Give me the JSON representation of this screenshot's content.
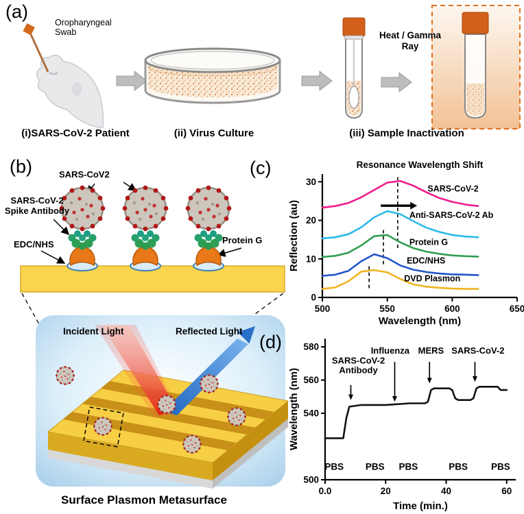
{
  "panel_a": {
    "label": "(a)",
    "swab_label": "Oropharyngeal Swab",
    "heat_label": "Heat / Gamma Ray",
    "caption_patient": "(i)SARS-CoV-2 Patient",
    "caption_culture": "(ii) Virus Culture",
    "caption_inactivation": "(iii) Sample Inactivation"
  },
  "panel_b": {
    "label": "(b)",
    "virus_label": "SARS-CoV2",
    "antibody_label": "SARS-CoV-2 Spike Antibody",
    "edc_label": "EDC/NHS",
    "protein_g_label": "Protein G",
    "incident_label": "Incident Light",
    "reflected_label": "Reflected Light",
    "caption": "Surface Plasmon Metasurface"
  },
  "panel_c": {
    "label": "(c)"
  },
  "panel_d": {
    "label": "(d)"
  },
  "colors": {
    "sars_cov2_curve": "#ee1d8e",
    "anti_ab_curve": "#2ab9e8",
    "protein_g_curve": "#2f9e4f",
    "edc_nhs_curve": "#2255c8",
    "dvd_plasmon_curve": "#f0b422",
    "gold_surface": "#f9d44c",
    "incident_beam": "#e02010",
    "reflected_beam": "#2a70c8",
    "inactivation_accent": "#e07020"
  },
  "chart_data": [
    {
      "id": "c",
      "type": "line",
      "title": "Resonance Wavelength Shift",
      "xlabel": "Wavelength (nm)",
      "ylabel": "Reflection (au)",
      "xlim": [
        500,
        650
      ],
      "ylim": [
        0,
        32
      ],
      "xticks": [
        500,
        550,
        600,
        650
      ],
      "xtick_labels": [
        "500",
        "550",
        "600",
        "650"
      ],
      "yticks": [
        0,
        10,
        20,
        30
      ],
      "ytick_labels": [
        "0",
        "10",
        "20",
        "30"
      ],
      "x": [
        500,
        510,
        520,
        530,
        540,
        550,
        560,
        570,
        580,
        590,
        600,
        610,
        620
      ],
      "series": [
        {
          "name": "SARS-CoV-2",
          "color": "#ee1d8e",
          "y": [
            23.3,
            23.7,
            24.5,
            26.0,
            27.9,
            29.8,
            30.2,
            29.0,
            27.3,
            25.8,
            24.8,
            24.1,
            23.7
          ],
          "label_pos": [
            581,
            27.5
          ]
        },
        {
          "name": "Anti-SARS-CoV-2 Ab",
          "color": "#2ab9e8",
          "y": [
            15.3,
            15.6,
            16.4,
            18.2,
            20.8,
            22.4,
            21.6,
            19.8,
            18.1,
            17.0,
            16.2,
            15.8,
            15.6
          ],
          "label_pos": [
            567,
            20.6
          ]
        },
        {
          "name": "Protein G",
          "color": "#2f9e4f",
          "y": [
            10.5,
            10.8,
            11.6,
            13.5,
            15.9,
            16.2,
            14.3,
            12.8,
            11.9,
            11.3,
            10.9,
            10.7,
            10.6
          ],
          "label_pos": [
            567,
            13.6
          ]
        },
        {
          "name": "EDC/NHS",
          "color": "#2255c8",
          "y": [
            5.6,
            5.9,
            6.9,
            9.4,
            11.2,
            10.2,
            8.3,
            7.2,
            6.6,
            6.2,
            6.0,
            5.9,
            5.8
          ],
          "label_pos": [
            565,
            8.8
          ]
        },
        {
          "name": "DVD Plasmon",
          "color": "#f0b422",
          "y": [
            2.2,
            2.6,
            4.2,
            6.7,
            7.1,
            6.5,
            4.8,
            3.4,
            2.8,
            2.5,
            2.3,
            2.2,
            2.2
          ],
          "label_pos": [
            563,
            4.2
          ]
        }
      ],
      "dashed_lines": [
        {
          "x": 536,
          "y1": 2.4,
          "y2": 8.8
        },
        {
          "x": 547,
          "y1": 8.6,
          "y2": 17.8
        },
        {
          "x": 558,
          "y1": 12.8,
          "y2": 31.2
        }
      ],
      "shift_arrow": {
        "x1": 545,
        "x2": 573,
        "y": 23.8
      },
      "legend_position": "right-of-curves",
      "grid": false
    },
    {
      "id": "d",
      "type": "line",
      "title": "",
      "xlabel": "Time (min.)",
      "ylabel": "Wavelength (nm)",
      "xlim": [
        0,
        63
      ],
      "ylim": [
        500,
        585
      ],
      "xticks": [
        0,
        20,
        40,
        60
      ],
      "xtick_labels": [
        "0.0",
        "20",
        "40",
        "60"
      ],
      "yticks": [
        500,
        540,
        560,
        580
      ],
      "ytick_labels": [
        "500",
        "540",
        "560",
        "580"
      ],
      "series": [
        {
          "name": "resonance wavelength",
          "color": "#111111",
          "x": [
            0,
            6,
            7,
            8,
            12,
            20,
            28,
            33,
            34,
            35,
            36,
            41,
            42,
            43,
            44,
            48,
            49,
            50,
            51,
            56,
            57,
            58,
            60
          ],
          "y": [
            525,
            525,
            537,
            544,
            545,
            545,
            546,
            546,
            547,
            554,
            555,
            555,
            554,
            549,
            548,
            548,
            549,
            555,
            556,
            556,
            556,
            554,
            554
          ]
        }
      ],
      "annotations": [
        {
          "lines": [
            "SARS-CoV-2",
            "Antibody"
          ],
          "x": 11,
          "y": 570,
          "arrow": {
            "x": 8.5,
            "y1": 557,
            "y2": 548
          }
        },
        {
          "lines": [
            "Influenza"
          ],
          "x": 21.5,
          "y": 576,
          "arrow": {
            "x": 23,
            "y1": 571,
            "y2": 547
          }
        },
        {
          "lines": [
            "MERS"
          ],
          "x": 35,
          "y": 576,
          "arrow": {
            "x": 34.5,
            "y1": 571,
            "y2": 558
          }
        },
        {
          "lines": [
            "SARS-CoV-2"
          ],
          "x": 50.5,
          "y": 576,
          "arrow": {
            "x": 49.5,
            "y1": 571,
            "y2": 559
          }
        }
      ],
      "point_labels": [
        {
          "text": "PBS",
          "x": 3,
          "y": 506
        },
        {
          "text": "PBS",
          "x": 16.5,
          "y": 506
        },
        {
          "text": "PBS",
          "x": 27.5,
          "y": 506
        },
        {
          "text": "PBS",
          "x": 44,
          "y": 506
        },
        {
          "text": "PBS",
          "x": 58,
          "y": 506
        }
      ],
      "grid": false
    }
  ]
}
